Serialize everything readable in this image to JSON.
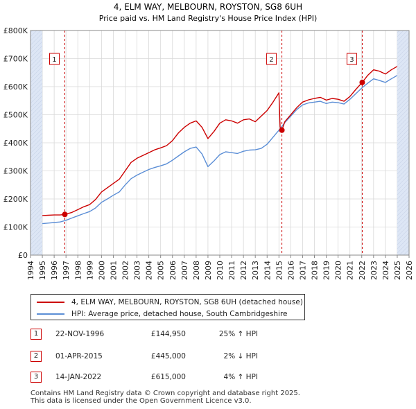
{
  "chart_data": {
    "type": "line",
    "title": "4, ELM WAY, MELBOURN, ROYSTON, SG8 6UH",
    "subtitle": "Price paid vs. HM Land Registry's House Price Index (HPI)",
    "xlabel": "",
    "ylabel": "",
    "xlim": [
      1994,
      2026
    ],
    "ylim": [
      0,
      800000
    ],
    "x_ticks": [
      "1994",
      "1995",
      "1996",
      "1997",
      "1998",
      "1999",
      "2000",
      "2001",
      "2002",
      "2003",
      "2004",
      "2005",
      "2006",
      "2007",
      "2008",
      "2009",
      "2010",
      "2011",
      "2012",
      "2013",
      "2014",
      "2015",
      "2016",
      "2017",
      "2018",
      "2019",
      "2020",
      "2021",
      "2022",
      "2023",
      "2024",
      "2025",
      "2026"
    ],
    "y_ticks": [
      "£0",
      "£100K",
      "£200K",
      "£300K",
      "£400K",
      "£500K",
      "£600K",
      "£700K",
      "£800K"
    ],
    "grid": true,
    "series": [
      {
        "name": "4, ELM WAY, MELBOURN, ROYSTON, SG8 6UH (detached house)",
        "color": "#cc0000",
        "points": [
          [
            1995.0,
            141000
          ],
          [
            1995.5,
            142000
          ],
          [
            1996.0,
            143000
          ],
          [
            1996.5,
            143000
          ],
          [
            1996.9,
            144950
          ],
          [
            1997.5,
            152000
          ],
          [
            1998.0,
            162000
          ],
          [
            1998.5,
            172000
          ],
          [
            1999.0,
            180000
          ],
          [
            1999.5,
            198000
          ],
          [
            2000.0,
            225000
          ],
          [
            2000.5,
            240000
          ],
          [
            2001.0,
            255000
          ],
          [
            2001.5,
            270000
          ],
          [
            2002.0,
            300000
          ],
          [
            2002.5,
            330000
          ],
          [
            2003.0,
            345000
          ],
          [
            2003.5,
            355000
          ],
          [
            2004.0,
            365000
          ],
          [
            2004.5,
            375000
          ],
          [
            2005.0,
            382000
          ],
          [
            2005.5,
            390000
          ],
          [
            2006.0,
            408000
          ],
          [
            2006.5,
            435000
          ],
          [
            2007.0,
            455000
          ],
          [
            2007.5,
            470000
          ],
          [
            2008.0,
            478000
          ],
          [
            2008.5,
            455000
          ],
          [
            2009.0,
            415000
          ],
          [
            2009.5,
            440000
          ],
          [
            2010.0,
            470000
          ],
          [
            2010.5,
            482000
          ],
          [
            2011.0,
            478000
          ],
          [
            2011.5,
            470000
          ],
          [
            2012.0,
            482000
          ],
          [
            2012.5,
            485000
          ],
          [
            2013.0,
            475000
          ],
          [
            2013.5,
            495000
          ],
          [
            2014.0,
            515000
          ],
          [
            2014.5,
            545000
          ],
          [
            2015.0,
            578000
          ],
          [
            2015.1,
            455000
          ],
          [
            2015.25,
            445000
          ],
          [
            2015.5,
            475000
          ],
          [
            2016.0,
            500000
          ],
          [
            2016.5,
            525000
          ],
          [
            2017.0,
            545000
          ],
          [
            2017.5,
            553000
          ],
          [
            2018.0,
            558000
          ],
          [
            2018.5,
            562000
          ],
          [
            2019.0,
            552000
          ],
          [
            2019.5,
            558000
          ],
          [
            2020.0,
            555000
          ],
          [
            2020.5,
            548000
          ],
          [
            2021.0,
            565000
          ],
          [
            2021.5,
            590000
          ],
          [
            2022.04,
            615000
          ],
          [
            2022.5,
            640000
          ],
          [
            2023.0,
            660000
          ],
          [
            2023.5,
            655000
          ],
          [
            2024.0,
            645000
          ],
          [
            2024.5,
            660000
          ],
          [
            2025.0,
            672000
          ]
        ]
      },
      {
        "name": "HPI: Average price, detached house, South Cambridgeshire",
        "color": "#5b8ed6",
        "points": [
          [
            1995.0,
            112000
          ],
          [
            1995.5,
            114000
          ],
          [
            1996.0,
            116000
          ],
          [
            1996.5,
            118000
          ],
          [
            1997.0,
            124000
          ],
          [
            1997.5,
            132000
          ],
          [
            1998.0,
            140000
          ],
          [
            1998.5,
            148000
          ],
          [
            1999.0,
            155000
          ],
          [
            1999.5,
            168000
          ],
          [
            2000.0,
            188000
          ],
          [
            2000.5,
            200000
          ],
          [
            2001.0,
            213000
          ],
          [
            2001.5,
            225000
          ],
          [
            2002.0,
            250000
          ],
          [
            2002.5,
            272000
          ],
          [
            2003.0,
            285000
          ],
          [
            2003.5,
            295000
          ],
          [
            2004.0,
            305000
          ],
          [
            2004.5,
            312000
          ],
          [
            2005.0,
            318000
          ],
          [
            2005.5,
            325000
          ],
          [
            2006.0,
            338000
          ],
          [
            2006.5,
            353000
          ],
          [
            2007.0,
            368000
          ],
          [
            2007.5,
            380000
          ],
          [
            2008.0,
            385000
          ],
          [
            2008.5,
            360000
          ],
          [
            2009.0,
            315000
          ],
          [
            2009.5,
            335000
          ],
          [
            2010.0,
            358000
          ],
          [
            2010.5,
            368000
          ],
          [
            2011.0,
            365000
          ],
          [
            2011.5,
            362000
          ],
          [
            2012.0,
            370000
          ],
          [
            2012.5,
            374000
          ],
          [
            2013.0,
            375000
          ],
          [
            2013.5,
            380000
          ],
          [
            2014.0,
            395000
          ],
          [
            2014.5,
            420000
          ],
          [
            2015.0,
            445000
          ],
          [
            2015.5,
            472000
          ],
          [
            2016.0,
            495000
          ],
          [
            2016.5,
            518000
          ],
          [
            2017.0,
            535000
          ],
          [
            2017.5,
            542000
          ],
          [
            2018.0,
            545000
          ],
          [
            2018.5,
            548000
          ],
          [
            2019.0,
            540000
          ],
          [
            2019.5,
            545000
          ],
          [
            2020.0,
            543000
          ],
          [
            2020.5,
            538000
          ],
          [
            2021.0,
            555000
          ],
          [
            2021.5,
            575000
          ],
          [
            2022.0,
            595000
          ],
          [
            2022.5,
            612000
          ],
          [
            2023.0,
            628000
          ],
          [
            2023.5,
            622000
          ],
          [
            2024.0,
            615000
          ],
          [
            2024.5,
            628000
          ],
          [
            2025.0,
            640000
          ]
        ]
      }
    ],
    "sales_markers": [
      {
        "label": "1",
        "x": 1996.9,
        "value": 144950
      },
      {
        "label": "2",
        "x": 2015.25,
        "value": 445000
      },
      {
        "label": "3",
        "x": 2022.04,
        "value": 615000
      }
    ]
  },
  "legend": {
    "items": [
      {
        "label": "4, ELM WAY, MELBOURN, ROYSTON, SG8 6UH (detached house)",
        "color": "#cc0000"
      },
      {
        "label": "HPI: Average price, detached house, South Cambridgeshire",
        "color": "#5b8ed6"
      }
    ]
  },
  "sales": [
    {
      "num": "1",
      "date": "22-NOV-1996",
      "price": "£144,950",
      "hpi": "25% ↑ HPI"
    },
    {
      "num": "2",
      "date": "01-APR-2015",
      "price": "£445,000",
      "hpi": "2% ↓ HPI"
    },
    {
      "num": "3",
      "date": "14-JAN-2022",
      "price": "£615,000",
      "hpi": "4% ↑ HPI"
    }
  ],
  "footer": {
    "line1": "Contains HM Land Registry data © Crown copyright and database right 2025.",
    "line2": "This data is licensed under the Open Government Licence v3.0."
  },
  "colors": {
    "shade": "#dde6f5",
    "marker_red": "#cc0000",
    "grid": "#d8d8d8"
  }
}
